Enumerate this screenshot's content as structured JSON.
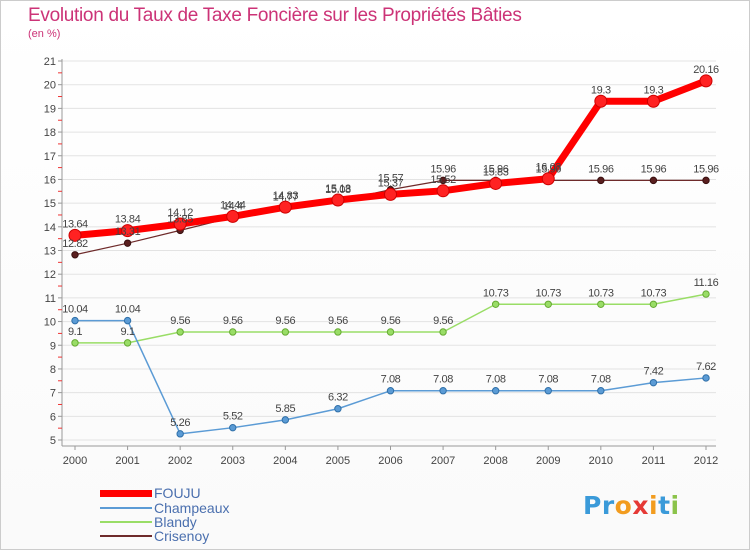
{
  "title": "Evolution du Taux de Taxe Foncière sur les Propriétés Bâties",
  "subtitle": "(en %)",
  "logo": {
    "text": "Proxiti",
    "colors": [
      "#3a9ad9",
      "#3a9ad9",
      "#f29c1f",
      "#e53935",
      "#f29c1f",
      "#3a9ad9",
      "#8bc34a"
    ]
  },
  "chart_data": {
    "type": "line",
    "title": "Evolution du Taux de Taxe Foncière sur les Propriétés Bâties",
    "ylabel": "(en %)",
    "xlabel": "",
    "ylim": [
      5,
      21
    ],
    "yticks": [
      5,
      6,
      7,
      8,
      9,
      10,
      11,
      12,
      13,
      14,
      15,
      16,
      17,
      18,
      19,
      20,
      21
    ],
    "categories": [
      "2000",
      "2001",
      "2002",
      "2003",
      "2004",
      "2005",
      "2006",
      "2007",
      "2008",
      "2009",
      "2010",
      "2011",
      "2012"
    ],
    "legend_position": "bottom-left",
    "series": [
      {
        "name": "Crisenoy",
        "color": "#6e2a2a",
        "labels": [
          "12.82",
          "13.31",
          "13.85",
          "14.4",
          "14.77",
          "15.08",
          "15.57",
          "15.96",
          "15.96",
          "15.96",
          "15.96",
          "15.96",
          "15.96"
        ],
        "values": [
          12.82,
          13.31,
          13.85,
          14.4,
          14.77,
          15.08,
          15.57,
          15.96,
          15.96,
          15.96,
          15.96,
          15.96,
          15.96
        ]
      },
      {
        "name": "Blandy",
        "color": "#99dd66",
        "labels": [
          "9.1",
          "9.1",
          "9.56",
          "9.56",
          "9.56",
          "9.56",
          "9.56",
          "9.56",
          "10.73",
          "10.73",
          "10.73",
          "10.73",
          "11.16"
        ],
        "values": [
          9.1,
          9.1,
          9.56,
          9.56,
          9.56,
          9.56,
          9.56,
          9.56,
          10.73,
          10.73,
          10.73,
          10.73,
          11.16
        ]
      },
      {
        "name": "Champeaux",
        "color": "#5b9bd5",
        "labels": [
          "10.04",
          "10.04",
          "5.26",
          "5.52",
          "5.85",
          "6.32",
          "7.08",
          "7.08",
          "7.08",
          "7.08",
          "7.08",
          "7.42",
          "7.62"
        ],
        "values": [
          10.04,
          10.04,
          5.26,
          5.52,
          5.85,
          6.32,
          7.08,
          7.08,
          7.08,
          7.08,
          7.08,
          7.42,
          7.62
        ]
      },
      {
        "name": "FOUJU",
        "color": "#ff0000",
        "labels": [
          "13.64",
          "13.84",
          "14.12",
          "14.44",
          "14.83",
          "15.13",
          "15.37",
          "15.52",
          "15.83",
          "16.03",
          "19.3",
          "19.3",
          "20.16"
        ],
        "values": [
          13.64,
          13.84,
          14.12,
          14.44,
          14.83,
          15.13,
          15.37,
          15.52,
          15.83,
          16.03,
          19.3,
          19.3,
          20.16
        ]
      }
    ],
    "legend_order": [
      "FOUJU",
      "Champeaux",
      "Blandy",
      "Crisenoy"
    ]
  }
}
